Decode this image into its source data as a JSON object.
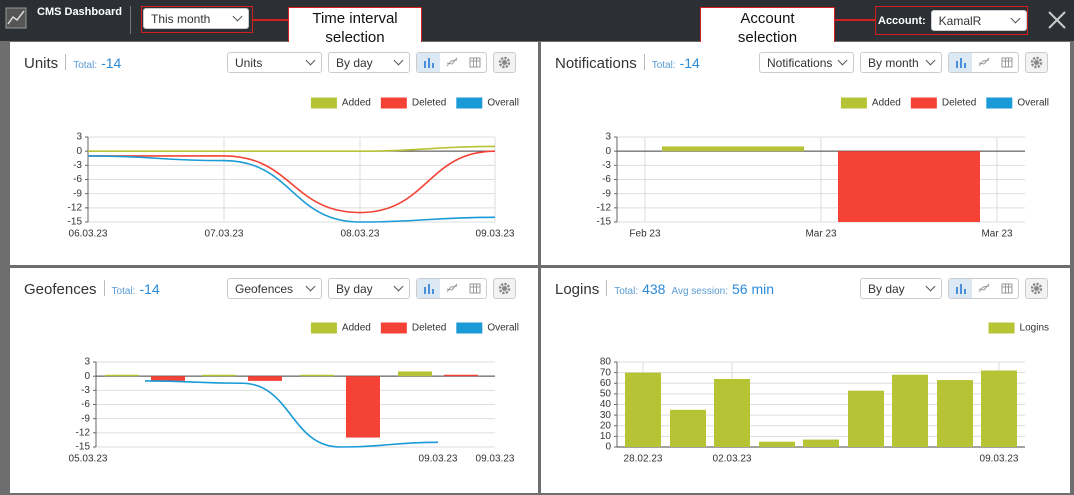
{
  "header": {
    "title": "CMS Dashboard",
    "interval": "This month",
    "account_label": "Account:",
    "account": "KamalR"
  },
  "annotations": [
    "Time interval selection",
    "Account selection"
  ],
  "panels": [
    {
      "title": "Units",
      "total_label": "Total:",
      "total": -14,
      "selects": [
        "Units",
        "By day"
      ],
      "chart": {
        "type": "line",
        "xticks": [
          "06.03.23",
          "07.03.23",
          "08.03.23",
          "09.03.23"
        ],
        "ylim": [
          -15,
          3
        ],
        "yticks": [
          3,
          0,
          -3,
          -6,
          -9,
          -12,
          -15
        ],
        "grid": true,
        "series": [
          {
            "name": "Added",
            "color": "#b5c334",
            "values": [
              0,
              0,
              0,
              1
            ]
          },
          {
            "name": "Deleted",
            "color": "#f44336",
            "values": [
              -1,
              -1,
              -13,
              0
            ]
          },
          {
            "name": "Overall",
            "color": "#1a9ad6",
            "values": [
              -1,
              -2,
              -15,
              -14
            ]
          }
        ]
      }
    },
    {
      "title": "Notifications",
      "total_label": "Total:",
      "total": -14,
      "selects": [
        "Notifications",
        "By month"
      ],
      "chart": {
        "type": "bar",
        "xticks": [
          "Feb 23",
          "Mar 23",
          "Mar 23"
        ],
        "ylim": [
          -15,
          3
        ],
        "yticks": [
          3,
          0,
          -3,
          -6,
          -9,
          -12,
          -15
        ],
        "grid": true,
        "series": [
          {
            "name": "Added",
            "color": "#b5c334",
            "values": [
              1,
              null
            ]
          },
          {
            "name": "Deleted",
            "color": "#f44336",
            "values": [
              null,
              -15
            ]
          },
          {
            "name": "Overall",
            "color": "#1a9ad6",
            "values": [
              null,
              null
            ]
          }
        ]
      }
    },
    {
      "title": "Geofences",
      "total_label": "Total:",
      "total": -14,
      "selects": [
        "Geofences",
        "By day"
      ],
      "chart": {
        "type": "bar",
        "xticks": [
          "05.03.23",
          "09.03.23",
          "09.03.23"
        ],
        "ylim": [
          -15,
          3
        ],
        "yticks": [
          3,
          0,
          -3,
          -6,
          -9,
          -12,
          -15
        ],
        "grid": true,
        "series": [
          {
            "name": "Added",
            "color": "#b5c334",
            "values": [
              0.3,
              0.3,
              0.3,
              1
            ]
          },
          {
            "name": "Deleted",
            "color": "#f44336",
            "values": [
              -1,
              -1,
              -13,
              0.3
            ]
          },
          {
            "name": "Overall",
            "color": "#1a9ad6",
            "style": "line",
            "values": [
              -1,
              -1.5,
              -15,
              -14
            ]
          }
        ]
      }
    },
    {
      "title": "Logins",
      "total_label": "Total:",
      "total": 438,
      "session_label": "Avg session:",
      "session": "56 min",
      "selects": [
        "By day"
      ],
      "chart": {
        "type": "bar",
        "categories": [
          "28.02.23",
          null,
          "02.03.23",
          null,
          null,
          null,
          null,
          null,
          "09.03.23"
        ],
        "ylim": [
          0,
          80
        ],
        "yticks": [
          0,
          10,
          20,
          30,
          40,
          50,
          60,
          70,
          80
        ],
        "grid": true,
        "series": [
          {
            "name": "Logins",
            "color": "#b5c334",
            "values": [
              70,
              35,
              64,
              5,
              7,
              53,
              68,
              63,
              72
            ]
          }
        ]
      }
    }
  ]
}
